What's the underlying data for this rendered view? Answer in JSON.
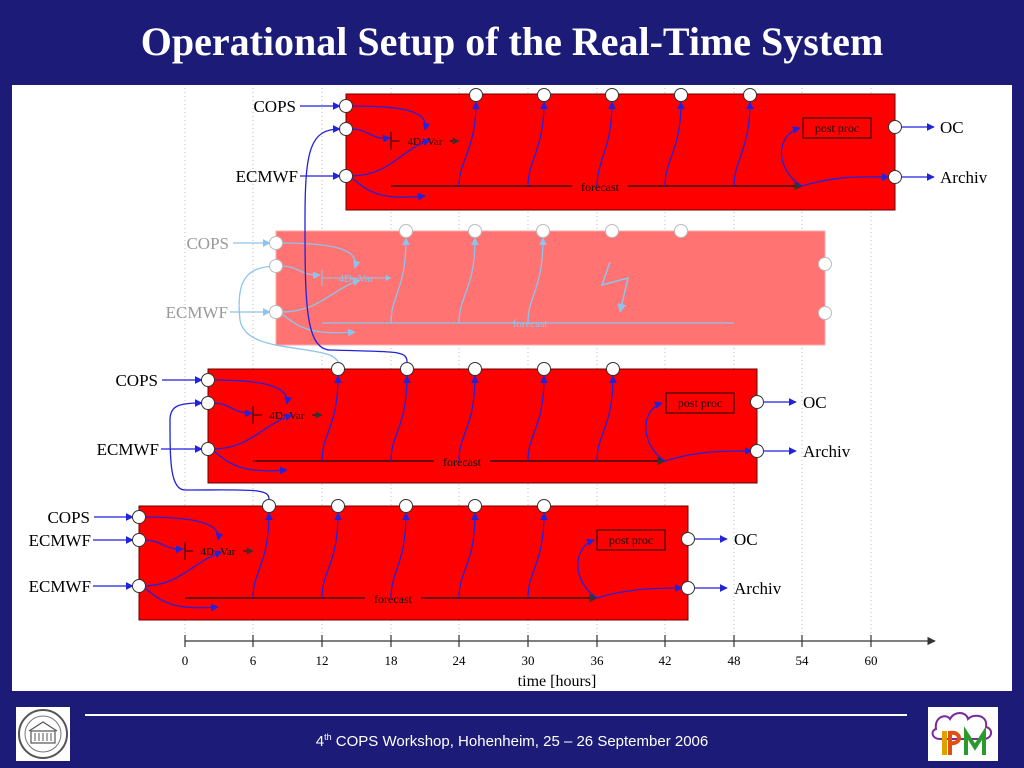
{
  "title": "Operational Setup of the Real-Time System",
  "footer": {
    "ordinal_number": "4",
    "ordinal_suffix": "th",
    "text": " COPS Workshop, Hohenheim, 25 – 26 September 2006"
  },
  "logos": {
    "left": "university-seal",
    "right": "ipm-logo"
  },
  "colors": {
    "background": "#1c1c78",
    "cycle_fill": "#ff0000",
    "cycle_fill_failed": "#ff7373",
    "arrow_blue": "#2222dd",
    "arrow_light_blue": "#8cc4ee"
  },
  "axis": {
    "label": "time [hours]",
    "ticks": [
      "0",
      "6",
      "12",
      "18",
      "24",
      "30",
      "36",
      "42",
      "48",
      "54",
      "60"
    ]
  },
  "labels": {
    "cops": "COPS",
    "ecmwf": "ECMWF",
    "fourdvar": "4D−Var",
    "forecast": "forecast",
    "postproc": "post proc",
    "oc": "OC",
    "archiv": "Archiv"
  }
}
